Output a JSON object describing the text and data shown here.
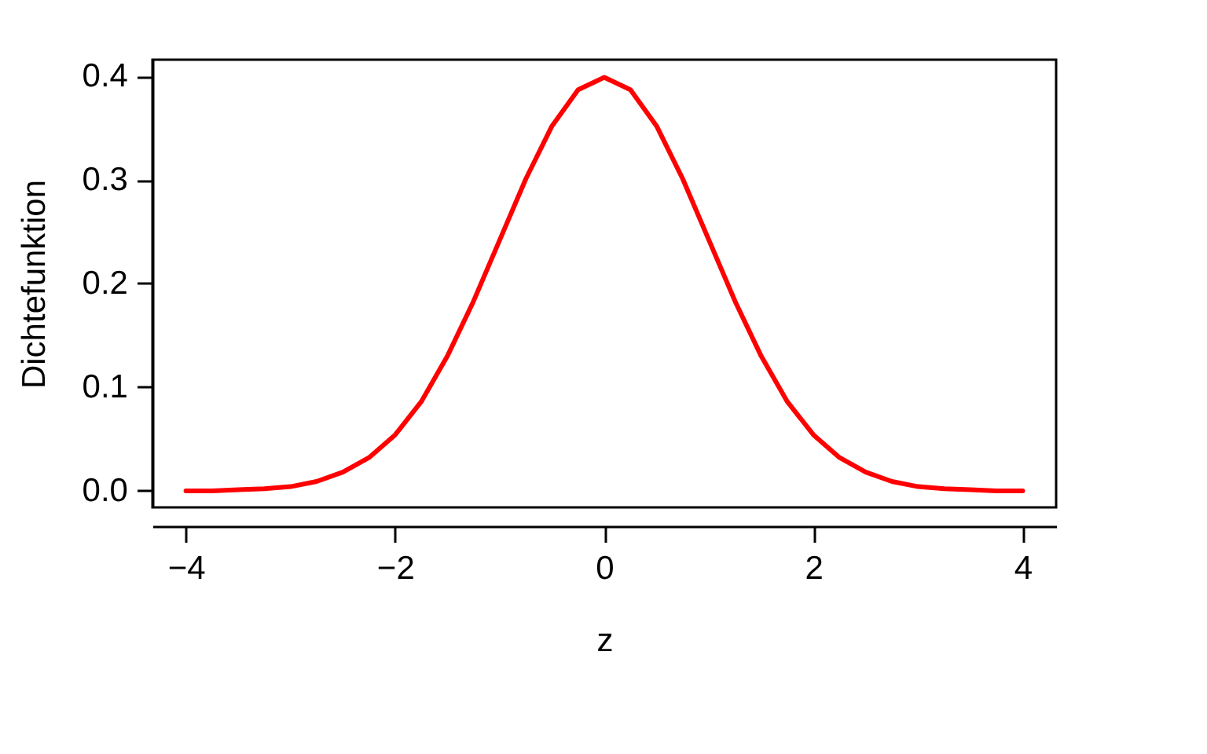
{
  "chart_data": {
    "type": "line",
    "xlabel": "z",
    "ylabel": "Dichtefunktion",
    "x": [
      -4,
      -3.75,
      -3.5,
      -3.25,
      -3,
      -2.75,
      -2.5,
      -2.25,
      -2,
      -1.75,
      -1.5,
      -1.25,
      -1,
      -0.75,
      -0.5,
      -0.25,
      0,
      0.25,
      0.5,
      0.75,
      1,
      1.25,
      1.5,
      1.75,
      2,
      2.25,
      2.5,
      2.75,
      3,
      3.25,
      3.5,
      3.75,
      4
    ],
    "series": [
      {
        "color": "#ff0000",
        "values": [
          0.0,
          0.0,
          0.001,
          0.002,
          0.004,
          0.009,
          0.018,
          0.032,
          0.054,
          0.086,
          0.13,
          0.183,
          0.242,
          0.301,
          0.352,
          0.387,
          0.399,
          0.387,
          0.352,
          0.301,
          0.242,
          0.183,
          0.13,
          0.086,
          0.054,
          0.032,
          0.018,
          0.009,
          0.004,
          0.002,
          0.001,
          0.0,
          0.0
        ]
      }
    ],
    "xlim": [
      -4.32,
      4.32
    ],
    "ylim": [
      -0.016,
      0.416
    ],
    "xticks": [
      -4,
      -2,
      0,
      2,
      4
    ],
    "yticks": [
      {
        "value": 0,
        "label": "0.0"
      },
      0.1,
      0.2,
      0.3,
      0.4
    ],
    "grid": false,
    "marker": "none",
    "line_style": "solid"
  }
}
